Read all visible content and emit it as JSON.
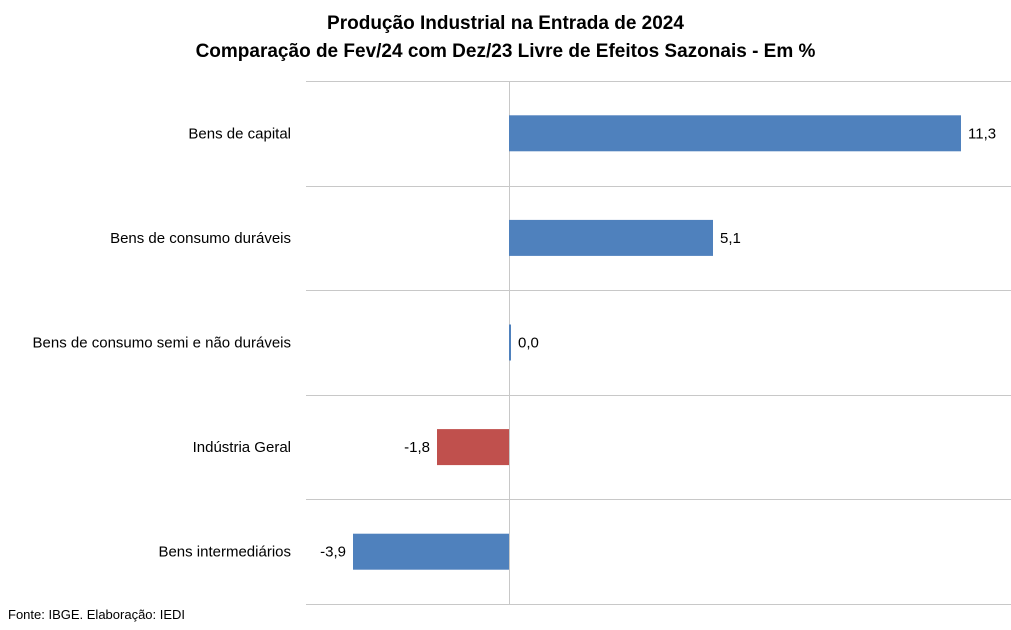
{
  "chart_data": {
    "type": "bar",
    "orientation": "horizontal",
    "title": "Produção Industrial na Entrada de 2024",
    "subtitle": "Comparação de Fev/24 com Dez/23 Livre de Efeitos Sazonais - Em %",
    "categories": [
      "Bens de capital",
      "Bens de consumo duráveis",
      "Bens de consumo semi e não duráveis",
      "Indústria Geral",
      "Bens intermediários"
    ],
    "values": [
      11.3,
      5.1,
      0.0,
      -1.8,
      -3.9
    ],
    "value_labels": [
      "11,3",
      "5,1",
      "0,0",
      "-1,8",
      "-3,9"
    ],
    "bar_colors": [
      "#4f81bd",
      "#4f81bd",
      "#4f81bd",
      "#c0504d",
      "#4f81bd"
    ],
    "xlim": [
      -5,
      12.5
    ],
    "grid": "horizontal separators",
    "xlabel": "",
    "ylabel": ""
  },
  "source": "Fonte: IBGE. Elaboração: IEDI"
}
